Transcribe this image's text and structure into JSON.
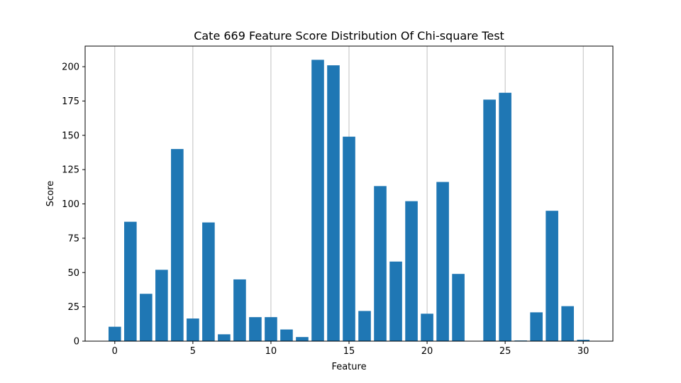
{
  "chart_data": {
    "type": "bar",
    "title": "Cate 669 Feature Score Distribution Of Chi-square Test",
    "xlabel": "Feature",
    "ylabel": "Score",
    "x": [
      0,
      1,
      2,
      3,
      4,
      5,
      6,
      7,
      8,
      9,
      10,
      11,
      12,
      13,
      14,
      15,
      16,
      17,
      18,
      19,
      20,
      21,
      22,
      23,
      24,
      25,
      26,
      27,
      28,
      29,
      30
    ],
    "values": [
      10.5,
      87,
      34.5,
      52,
      140,
      16.5,
      86.5,
      5,
      45,
      17.5,
      17.5,
      8.5,
      3,
      205,
      201,
      149,
      22,
      113,
      58,
      102,
      20,
      116,
      49,
      0,
      176,
      181,
      0.5,
      21,
      95,
      25.5,
      1
    ],
    "xlim": [
      -1.9,
      31.9
    ],
    "ylim": [
      0,
      215
    ],
    "xticks": [
      0,
      5,
      10,
      15,
      20,
      25,
      30
    ],
    "yticks": [
      0,
      25,
      50,
      75,
      100,
      125,
      150,
      175,
      200
    ],
    "grid": "vertical",
    "bar_color": "#1f77b4"
  }
}
